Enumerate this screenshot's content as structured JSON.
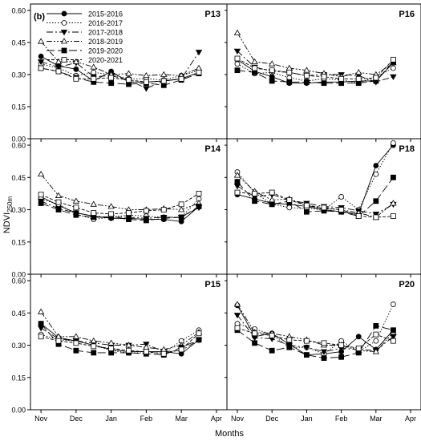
{
  "figure": {
    "label": "(b)",
    "ylabel_main": "NDVI",
    "ylabel_sub": "250m",
    "xlabel": "Months"
  },
  "chart_data": {
    "type": "line",
    "x_ticks": [
      "Nov",
      "Dec",
      "Jan",
      "Feb",
      "Mar",
      "Apr"
    ],
    "x_tick_values": [
      0,
      1,
      2,
      3,
      4,
      5
    ],
    "xlim": [
      -0.3,
      5.3
    ],
    "ylim": [
      0,
      0.63
    ],
    "y_ticks": [
      "0.00",
      "0.15",
      "0.30",
      "0.45",
      "0.60"
    ],
    "y_tick_values": [
      0,
      0.15,
      0.3,
      0.45,
      0.6
    ],
    "x_values": [
      0,
      0.5,
      1,
      1.5,
      2,
      2.5,
      3,
      3.5,
      4,
      4.5
    ],
    "grid": false,
    "legend_position": "top-left of panel P13",
    "series_styles": [
      {
        "name": "2015-2016",
        "marker": "circle-filled",
        "dash": "",
        "color": "#000000"
      },
      {
        "name": "2016-2017",
        "marker": "circle-open",
        "dash": "1.5,2",
        "color": "#000000"
      },
      {
        "name": "2017-2018",
        "marker": "triangle-down-filled",
        "dash": "8,3,2,3",
        "color": "#000000"
      },
      {
        "name": "2018-2019",
        "marker": "triangle-up-open",
        "dash": "7,2,2,2,2,2",
        "color": "#000000"
      },
      {
        "name": "2019-2020",
        "marker": "square-filled",
        "dash": "10,4",
        "color": "#000000"
      },
      {
        "name": "2020-2021",
        "marker": "square-open",
        "dash": "4,2",
        "color": "#000000"
      }
    ],
    "panels": [
      {
        "title": "P13",
        "series": [
          {
            "name": "2015-2016",
            "values": [
              0.385,
              0.34,
              0.325,
              0.27,
              0.315,
              0.265,
              0.265,
              0.27,
              0.28,
              0.31
            ]
          },
          {
            "name": "2016-2017",
            "values": [
              0.35,
              0.33,
              0.295,
              0.31,
              0.3,
              0.28,
              0.28,
              0.275,
              0.295,
              0.32
            ]
          },
          {
            "name": "2017-2018",
            "values": [
              0.36,
              0.335,
              0.355,
              0.29,
              0.295,
              0.275,
              0.235,
              0.27,
              0.28,
              0.405
            ]
          },
          {
            "name": "2018-2019",
            "values": [
              0.455,
              0.36,
              0.36,
              0.335,
              0.3,
              0.305,
              0.295,
              0.3,
              0.295,
              0.33
            ]
          },
          {
            "name": "2019-2020",
            "values": [
              0.33,
              0.315,
              0.285,
              0.265,
              0.26,
              0.255,
              0.26,
              0.25,
              0.275,
              0.305
            ]
          },
          {
            "name": "2020-2021",
            "values": [
              0.33,
              0.315,
              0.28,
              0.28,
              0.285,
              0.275,
              0.265,
              0.27,
              0.28,
              0.31
            ]
          }
        ]
      },
      {
        "title": "P16",
        "series": [
          {
            "name": "2015-2016",
            "values": [
              0.37,
              0.315,
              0.29,
              0.26,
              0.26,
              0.265,
              0.265,
              0.27,
              0.27,
              0.355
            ]
          },
          {
            "name": "2016-2017",
            "values": [
              0.35,
              0.305,
              0.31,
              0.285,
              0.27,
              0.28,
              0.275,
              0.26,
              0.29,
              0.33
            ]
          },
          {
            "name": "2017-2018",
            "values": [
              0.41,
              0.335,
              0.315,
              0.31,
              0.295,
              0.3,
              0.3,
              0.295,
              0.265,
              0.29
            ]
          },
          {
            "name": "2018-2019",
            "values": [
              0.495,
              0.36,
              0.35,
              0.33,
              0.32,
              0.305,
              0.29,
              0.31,
              0.3,
              0.355
            ]
          },
          {
            "name": "2019-2020",
            "values": [
              0.32,
              0.31,
              0.27,
              0.265,
              0.265,
              0.26,
              0.26,
              0.26,
              0.27,
              0.36
            ]
          },
          {
            "name": "2020-2021",
            "values": [
              0.375,
              0.33,
              0.32,
              0.31,
              0.295,
              0.29,
              0.28,
              0.28,
              0.285,
              0.37
            ]
          }
        ]
      },
      {
        "title": "P14",
        "series": [
          {
            "name": "2015-2016",
            "values": [
              0.36,
              0.32,
              0.285,
              0.27,
              0.26,
              0.26,
              0.255,
              0.255,
              0.245,
              0.315
            ]
          },
          {
            "name": "2016-2017",
            "values": [
              0.35,
              0.325,
              0.28,
              0.255,
              0.265,
              0.275,
              0.27,
              0.265,
              0.265,
              0.35
            ]
          },
          {
            "name": "2017-2018",
            "values": [
              0.34,
              0.305,
              0.285,
              0.27,
              0.265,
              0.265,
              0.26,
              0.265,
              0.265,
              0.31
            ]
          },
          {
            "name": "2018-2019",
            "values": [
              0.465,
              0.365,
              0.34,
              0.325,
              0.315,
              0.3,
              0.3,
              0.305,
              0.3,
              0.33
            ]
          },
          {
            "name": "2019-2020",
            "values": [
              0.33,
              0.3,
              0.275,
              0.265,
              0.265,
              0.255,
              0.25,
              0.26,
              0.265,
              0.315
            ]
          },
          {
            "name": "2020-2021",
            "values": [
              0.37,
              0.335,
              0.31,
              0.285,
              0.28,
              0.285,
              0.295,
              0.3,
              0.325,
              0.375
            ]
          }
        ]
      },
      {
        "title": "P18",
        "series": [
          {
            "name": "2015-2016",
            "values": [
              0.37,
              0.35,
              0.33,
              0.325,
              0.315,
              0.3,
              0.29,
              0.28,
              0.505,
              0.6
            ]
          },
          {
            "name": "2016-2017",
            "values": [
              0.475,
              0.38,
              0.325,
              0.31,
              0.305,
              0.3,
              0.36,
              0.3,
              0.465,
              0.61
            ]
          },
          {
            "name": "2017-2018",
            "values": [
              0.41,
              0.36,
              0.37,
              0.345,
              0.33,
              0.315,
              0.31,
              0.295,
              0.28,
              0.325
            ]
          },
          {
            "name": "2018-2019",
            "values": [
              0.46,
              0.385,
              0.345,
              0.35,
              0.32,
              0.305,
              0.3,
              0.285,
              0.265,
              0.33
            ]
          },
          {
            "name": "2019-2020",
            "values": [
              0.43,
              0.34,
              0.325,
              0.34,
              0.29,
              0.295,
              0.29,
              0.27,
              0.34,
              0.45
            ]
          },
          {
            "name": "2020-2021",
            "values": [
              0.38,
              0.375,
              0.38,
              0.345,
              0.32,
              0.31,
              0.3,
              0.27,
              0.265,
              0.27
            ]
          }
        ]
      },
      {
        "title": "P15",
        "series": [
          {
            "name": "2015-2016",
            "values": [
              0.4,
              0.335,
              0.32,
              0.3,
              0.28,
              0.27,
              0.27,
              0.27,
              0.26,
              0.325
            ]
          },
          {
            "name": "2016-2017",
            "values": [
              0.35,
              0.325,
              0.32,
              0.3,
              0.275,
              0.265,
              0.265,
              0.265,
              0.32,
              0.37
            ]
          },
          {
            "name": "2017-2018",
            "values": [
              0.38,
              0.33,
              0.32,
              0.31,
              0.3,
              0.3,
              0.305,
              0.27,
              0.275,
              0.325
            ]
          },
          {
            "name": "2018-2019",
            "values": [
              0.455,
              0.34,
              0.34,
              0.32,
              0.31,
              0.3,
              0.29,
              0.28,
              0.3,
              0.36
            ]
          },
          {
            "name": "2019-2020",
            "values": [
              0.4,
              0.305,
              0.275,
              0.265,
              0.265,
              0.265,
              0.26,
              0.255,
              0.29,
              0.325
            ]
          },
          {
            "name": "2020-2021",
            "values": [
              0.34,
              0.32,
              0.31,
              0.295,
              0.285,
              0.275,
              0.27,
              0.26,
              0.28,
              0.355
            ]
          }
        ]
      },
      {
        "title": "P20",
        "series": [
          {
            "name": "2015-2016",
            "values": [
              0.485,
              0.34,
              0.355,
              0.305,
              0.255,
              0.26,
              0.27,
              0.34,
              0.28,
              0.37
            ]
          },
          {
            "name": "2016-2017",
            "values": [
              0.4,
              0.375,
              0.35,
              0.29,
              0.29,
              0.26,
              0.32,
              0.27,
              0.32,
              0.49
            ]
          },
          {
            "name": "2017-2018",
            "values": [
              0.44,
              0.335,
              0.33,
              0.3,
              0.29,
              0.27,
              0.285,
              0.28,
              0.275,
              0.34
            ]
          },
          {
            "name": "2018-2019",
            "values": [
              0.49,
              0.36,
              0.355,
              0.34,
              0.325,
              0.3,
              0.3,
              0.275,
              0.27,
              0.36
            ]
          },
          {
            "name": "2019-2020",
            "values": [
              0.37,
              0.31,
              0.275,
              0.29,
              0.255,
              0.24,
              0.245,
              0.265,
              0.39,
              0.37
            ]
          },
          {
            "name": "2020-2021",
            "values": [
              0.38,
              0.355,
              0.345,
              0.325,
              0.32,
              0.31,
              0.3,
              0.285,
              0.35,
              0.32
            ]
          }
        ]
      }
    ]
  }
}
